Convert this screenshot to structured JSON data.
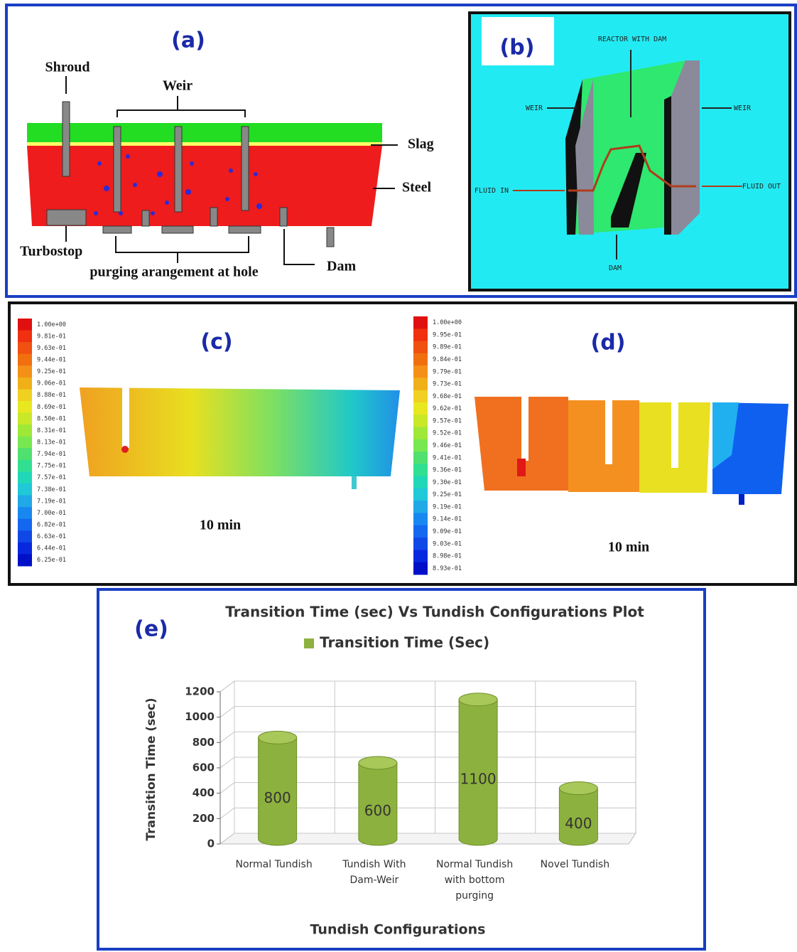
{
  "panel_a": {
    "label": "(a)",
    "shroud": "Shroud",
    "weir": "Weir",
    "slag": "Slag",
    "steel": "Steel",
    "turbostop": "Turbostop",
    "purging": "purging arangement at hole",
    "dam": "Dam"
  },
  "panel_b": {
    "label": "(b)",
    "reactor": "REACTOR WITH DAM",
    "weir_left": "WEIR",
    "weir_right": "WEIR",
    "fluid_in": "FLUID IN",
    "fluid_out": "FLUID OUT",
    "dam": "DAM"
  },
  "panel_c": {
    "label": "(c)",
    "time": "10 min",
    "colorbar": [
      "1.00e+00",
      "9.81e-01",
      "9.63e-01",
      "9.44e-01",
      "9.25e-01",
      "9.06e-01",
      "8.88e-01",
      "8.69e-01",
      "8.50e-01",
      "8.31e-01",
      "8.13e-01",
      "7.94e-01",
      "7.75e-01",
      "7.57e-01",
      "7.38e-01",
      "7.19e-01",
      "7.00e-01",
      "6.82e-01",
      "6.63e-01",
      "6.44e-01",
      "6.25e-01"
    ]
  },
  "panel_d": {
    "label": "(d)",
    "time": "10 min",
    "colorbar": [
      "1.00e+00",
      "9.95e-01",
      "9.89e-01",
      "9.84e-01",
      "9.79e-01",
      "9.73e-01",
      "9.68e-01",
      "9.62e-01",
      "9.57e-01",
      "9.52e-01",
      "9.46e-01",
      "9.41e-01",
      "9.36e-01",
      "9.30e-01",
      "9.25e-01",
      "9.19e-01",
      "9.14e-01",
      "9.09e-01",
      "9.03e-01",
      "8.98e-01",
      "8.93e-01"
    ]
  },
  "chart_data": {
    "type": "bar",
    "label": "(e)",
    "title": "Transition Time (sec) Vs Tundish Configurations Plot",
    "x_label": "Tundish Configurations",
    "y_label": "Transition Time  (sec)",
    "categories": [
      "Normal Tundish",
      "Tundish With Dam-Weir",
      "Normal Tundish with bottom purging",
      "Novel Tundish"
    ],
    "series": [
      {
        "name": "Transition Time (Sec)",
        "color": "#8db13e",
        "values": [
          800,
          600,
          1100,
          400
        ]
      }
    ],
    "ylim": [
      0,
      1200
    ],
    "yticks": [
      0,
      200,
      400,
      600,
      800,
      1000,
      1200
    ],
    "grid": true
  }
}
